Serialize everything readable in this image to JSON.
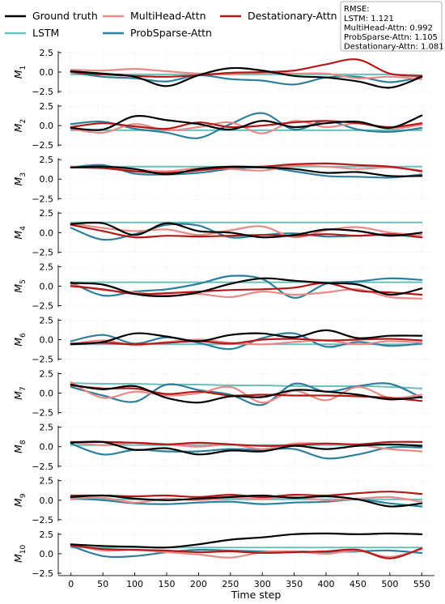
{
  "chart_data": {
    "type": "line",
    "xlabel": "Time step",
    "xlim": [
      -20,
      570
    ],
    "x_ticks": [
      "0",
      "50",
      "100",
      "150",
      "200",
      "250",
      "300",
      "350",
      "400",
      "450",
      "500",
      "550"
    ],
    "y_ticks": [
      "2.5",
      "0.0",
      "−2.5"
    ],
    "ylim": [
      -2.7,
      2.7
    ],
    "grid": true,
    "legend": {
      "placement": "top",
      "entries": [
        "Ground truth",
        "LSTM",
        "MultiHead-Attn",
        "ProbSparse-Attn",
        "Destationary-Attn"
      ]
    },
    "rmse_box": {
      "title": "RMSE:",
      "lines": [
        "LSTM: 1.121",
        "MultiHead-Attn: 0.992",
        "ProbSparse-Attn: 1.105",
        "Destationary-Attn: 1.081"
      ]
    },
    "series_styles": [
      {
        "name": "Ground truth",
        "color": "#000000"
      },
      {
        "name": "LSTM",
        "color": "#6bbfba"
      },
      {
        "name": "MultiHead-Attn",
        "color": "#e88a87"
      },
      {
        "name": "ProbSparse-Attn",
        "color": "#2f7f9b"
      },
      {
        "name": "Destationary-Attn",
        "color": "#b21a1a"
      }
    ],
    "x_knots": [
      0,
      50,
      100,
      150,
      200,
      250,
      300,
      350,
      400,
      450,
      500,
      550
    ],
    "panels": [
      {
        "label": "M",
        "sub": "1",
        "series": [
          {
            "name": "Ground truth",
            "values": [
              0.1,
              -0.2,
              -0.6,
              -1.8,
              -0.4,
              0.5,
              0.2,
              -0.5,
              -0.7,
              -1.2,
              -2.0,
              -0.6
            ]
          },
          {
            "name": "LSTM",
            "values": [
              -0.3,
              -0.3,
              -0.3,
              -0.3,
              -0.3,
              -0.3,
              -0.3,
              -0.3,
              -0.3,
              -0.3,
              -0.3,
              -0.4
            ]
          },
          {
            "name": "MultiHead-Attn",
            "values": [
              0.3,
              0.2,
              0.4,
              0.1,
              -0.2,
              -0.3,
              -0.1,
              -0.2,
              -0.2,
              -0.8,
              -0.6,
              -0.9
            ]
          },
          {
            "name": "ProbSparse-Attn",
            "values": [
              0.0,
              -0.6,
              -0.8,
              -1.2,
              -0.4,
              -0.9,
              -1.1,
              -1.6,
              -0.7,
              -0.6,
              -1.3,
              -0.6
            ]
          },
          {
            "name": "Destationary-Attn",
            "values": [
              0.0,
              -0.3,
              -0.5,
              -0.6,
              -0.4,
              -0.1,
              0.0,
              0.2,
              1.0,
              1.6,
              -0.2,
              -0.5
            ]
          }
        ]
      },
      {
        "label": "M",
        "sub": "2",
        "series": [
          {
            "name": "Ground truth",
            "values": [
              -0.3,
              -0.5,
              1.2,
              0.7,
              0.2,
              -0.5,
              0.6,
              -0.2,
              0.3,
              0.5,
              -0.3,
              1.3
            ]
          },
          {
            "name": "LSTM",
            "values": [
              -0.6,
              -0.6,
              -0.6,
              -0.6,
              -0.6,
              -0.6,
              -0.6,
              -0.6,
              -0.6,
              -0.6,
              -0.6,
              -0.6
            ]
          },
          {
            "name": "MultiHead-Attn",
            "values": [
              -0.4,
              -0.9,
              0.2,
              -0.6,
              -0.2,
              0.4,
              -1.0,
              0.6,
              -0.2,
              0.3,
              -0.4,
              0.1
            ]
          },
          {
            "name": "ProbSparse-Attn",
            "values": [
              0.2,
              0.5,
              -0.4,
              -0.9,
              -1.6,
              0.2,
              1.6,
              -0.5,
              0.6,
              -0.5,
              -0.8,
              -0.3
            ]
          },
          {
            "name": "Destationary-Attn",
            "values": [
              -0.2,
              0.3,
              -0.1,
              -0.4,
              0.4,
              -0.2,
              0.0,
              0.4,
              0.6,
              0.3,
              -0.2,
              0.3
            ]
          }
        ]
      },
      {
        "label": "M",
        "sub": "3",
        "series": [
          {
            "name": "Ground truth",
            "values": [
              1.5,
              1.6,
              1.3,
              0.6,
              1.3,
              1.6,
              1.5,
              1.3,
              0.8,
              0.9,
              0.4,
              0.4
            ]
          },
          {
            "name": "LSTM",
            "values": [
              1.6,
              1.6,
              1.6,
              1.6,
              1.6,
              1.6,
              1.6,
              1.6,
              1.6,
              1.6,
              1.6,
              1.6
            ]
          },
          {
            "name": "MultiHead-Attn",
            "values": [
              1.6,
              1.5,
              1.2,
              1.0,
              1.4,
              1.3,
              1.1,
              1.7,
              1.6,
              1.3,
              1.5,
              1.1
            ]
          },
          {
            "name": "ProbSparse-Attn",
            "values": [
              1.5,
              1.8,
              0.7,
              0.6,
              0.8,
              1.3,
              1.5,
              1.0,
              0.4,
              0.3,
              0.2,
              0.6
            ]
          },
          {
            "name": "Destationary-Attn",
            "values": [
              1.5,
              1.4,
              1.0,
              0.8,
              1.1,
              1.5,
              1.6,
              1.9,
              2.0,
              1.8,
              1.6,
              1.0
            ]
          }
        ]
      },
      {
        "label": "M",
        "sub": "4",
        "series": [
          {
            "name": "Ground truth",
            "values": [
              1.1,
              1.2,
              -0.3,
              1.2,
              0.2,
              0.0,
              -0.6,
              -0.3,
              0.4,
              0.2,
              -0.4,
              0.0
            ]
          },
          {
            "name": "LSTM",
            "values": [
              1.3,
              1.3,
              1.3,
              1.3,
              1.3,
              1.3,
              1.3,
              1.3,
              1.3,
              1.3,
              1.3,
              1.3
            ]
          },
          {
            "name": "MultiHead-Attn",
            "values": [
              1.2,
              0.6,
              0.2,
              0.4,
              -0.3,
              0.3,
              0.8,
              -0.6,
              0.3,
              0.7,
              0.0,
              -0.3
            ]
          },
          {
            "name": "ProbSparse-Attn",
            "values": [
              0.6,
              -0.9,
              -0.2,
              1.0,
              0.9,
              -0.6,
              -0.3,
              -0.1,
              -0.5,
              -0.4,
              -0.3,
              -0.6
            ]
          },
          {
            "name": "Destationary-Attn",
            "values": [
              1.0,
              0.2,
              -0.6,
              -0.4,
              -0.5,
              -0.4,
              -0.3,
              -0.4,
              -0.2,
              -0.4,
              -0.2,
              -0.6
            ]
          }
        ]
      },
      {
        "label": "M",
        "sub": "5",
        "series": [
          {
            "name": "Ground truth",
            "values": [
              0.4,
              0.2,
              -1.0,
              -1.3,
              -0.8,
              0.3,
              1.0,
              0.7,
              0.4,
              0.2,
              -1.1,
              -0.3
            ]
          },
          {
            "name": "LSTM",
            "values": [
              0.5,
              0.5,
              0.5,
              0.5,
              0.5,
              0.5,
              0.5,
              0.5,
              0.5,
              0.5,
              0.5,
              0.5
            ]
          },
          {
            "name": "MultiHead-Attn",
            "values": [
              0.2,
              -0.5,
              -0.8,
              -1.2,
              -1.0,
              -1.4,
              -0.7,
              -1.1,
              -0.8,
              -0.4,
              -1.4,
              -1.6
            ]
          },
          {
            "name": "ProbSparse-Attn",
            "values": [
              0.5,
              -1.2,
              -0.7,
              -0.4,
              0.3,
              1.3,
              0.9,
              -1.5,
              0.3,
              0.6,
              1.0,
              0.8
            ]
          },
          {
            "name": "Destationary-Attn",
            "values": [
              0.0,
              -0.4,
              -1.0,
              -0.9,
              -0.7,
              -0.5,
              -0.4,
              -0.2,
              0.4,
              -0.6,
              -0.8,
              -1.1
            ]
          }
        ]
      },
      {
        "label": "M",
        "sub": "6",
        "series": [
          {
            "name": "Ground truth",
            "values": [
              -0.6,
              -0.3,
              0.8,
              0.4,
              -0.2,
              0.6,
              0.8,
              0.3,
              1.2,
              0.2,
              0.5,
              0.5
            ]
          },
          {
            "name": "LSTM",
            "values": [
              -0.6,
              -0.6,
              -0.6,
              -0.6,
              -0.6,
              -0.6,
              -0.6,
              -0.6,
              -0.6,
              -0.6,
              -0.6,
              -0.6
            ]
          },
          {
            "name": "MultiHead-Attn",
            "values": [
              -0.6,
              -0.1,
              -0.7,
              -0.3,
              0.0,
              -0.4,
              -0.6,
              -0.3,
              -0.1,
              -0.6,
              -0.2,
              -0.4
            ]
          },
          {
            "name": "ProbSparse-Attn",
            "values": [
              -0.2,
              0.6,
              -0.5,
              0.3,
              -0.4,
              -1.2,
              0.2,
              0.8,
              -0.9,
              -0.3,
              -0.8,
              -0.5
            ]
          },
          {
            "name": "Destationary-Attn",
            "values": [
              -0.5,
              -0.4,
              -0.6,
              -0.4,
              -0.2,
              -0.5,
              0.0,
              0.1,
              -0.1,
              0.0,
              0.1,
              -0.1
            ]
          }
        ]
      },
      {
        "label": "M",
        "sub": "7",
        "series": [
          {
            "name": "Ground truth",
            "values": [
              1.1,
              0.5,
              0.9,
              -0.6,
              -1.2,
              -0.4,
              -0.5,
              0.4,
              0.2,
              -0.2,
              -0.8,
              -0.5
            ]
          },
          {
            "name": "LSTM",
            "values": [
              1.3,
              1.2,
              1.2,
              1.1,
              1.1,
              1.0,
              1.0,
              0.9,
              0.9,
              0.9,
              0.8,
              0.6
            ]
          },
          {
            "name": "MultiHead-Attn",
            "values": [
              1.4,
              -0.6,
              0.2,
              -0.3,
              0.0,
              0.8,
              -1.2,
              0.3,
              -0.9,
              0.8,
              -0.6,
              -0.2
            ]
          },
          {
            "name": "ProbSparse-Attn",
            "values": [
              0.8,
              -0.3,
              -1.1,
              1.1,
              0.4,
              -0.2,
              -1.5,
              1.2,
              0.2,
              0.9,
              1.2,
              -0.6
            ]
          },
          {
            "name": "Destationary-Attn",
            "values": [
              1.0,
              0.6,
              0.6,
              -0.1,
              0.2,
              -0.3,
              -0.2,
              -0.3,
              -0.3,
              -0.4,
              -0.6,
              -1.0
            ]
          }
        ]
      },
      {
        "label": "M",
        "sub": "8",
        "series": [
          {
            "name": "Ground truth",
            "values": [
              0.5,
              0.6,
              -0.4,
              -0.2,
              -1.0,
              -0.5,
              -0.6,
              0.1,
              -0.3,
              0.1,
              0.3,
              0.1
            ]
          },
          {
            "name": "LSTM",
            "values": [
              0.2,
              0.2,
              0.2,
              0.2,
              0.2,
              0.2,
              0.2,
              0.2,
              0.2,
              0.2,
              0.2,
              0.2
            ]
          },
          {
            "name": "MultiHead-Attn",
            "values": [
              0.6,
              0.2,
              0.5,
              0.3,
              0.0,
              0.3,
              -0.3,
              0.4,
              0.4,
              0.2,
              -0.3,
              -0.6
            ]
          },
          {
            "name": "ProbSparse-Attn",
            "values": [
              0.4,
              -1.0,
              -0.4,
              -0.6,
              -0.6,
              -0.3,
              -0.4,
              -0.3,
              -1.5,
              -1.0,
              -0.1,
              -0.1
            ]
          },
          {
            "name": "Destationary-Attn",
            "values": [
              0.6,
              0.6,
              0.5,
              0.3,
              0.5,
              0.3,
              0.1,
              0.2,
              0.4,
              0.3,
              0.6,
              0.6
            ]
          }
        ]
      },
      {
        "label": "M",
        "sub": "9",
        "series": [
          {
            "name": "Ground truth",
            "values": [
              0.4,
              0.6,
              0.2,
              0.0,
              0.2,
              0.4,
              0.6,
              0.3,
              0.5,
              0.1,
              -0.8,
              -0.4
            ]
          },
          {
            "name": "LSTM",
            "values": [
              0.1,
              0.1,
              0.1,
              0.1,
              0.1,
              0.1,
              0.1,
              0.1,
              0.1,
              0.1,
              0.1,
              0.1
            ]
          },
          {
            "name": "MultiHead-Attn",
            "values": [
              0.2,
              0.3,
              -0.3,
              0.2,
              0.0,
              0.3,
              0.2,
              0.4,
              0.0,
              0.2,
              0.4,
              -0.2
            ]
          },
          {
            "name": "ProbSparse-Attn",
            "values": [
              0.3,
              0.0,
              -0.4,
              -0.5,
              -0.3,
              -0.2,
              -0.5,
              -0.3,
              -0.2,
              0.1,
              -0.4,
              -0.8
            ]
          },
          {
            "name": "Destationary-Attn",
            "values": [
              0.6,
              0.6,
              0.5,
              0.6,
              0.4,
              0.7,
              0.4,
              0.7,
              0.6,
              0.9,
              1.1,
              0.8
            ]
          }
        ]
      },
      {
        "label": "M",
        "sub": "10",
        "series": [
          {
            "name": "Ground truth",
            "values": [
              1.2,
              1.0,
              0.9,
              0.8,
              1.2,
              1.8,
              2.1,
              2.5,
              2.6,
              2.5,
              2.6,
              2.5
            ]
          },
          {
            "name": "LSTM",
            "values": [
              0.8,
              0.8,
              0.8,
              0.8,
              0.8,
              0.8,
              0.8,
              0.8,
              0.8,
              0.8,
              0.8,
              0.8
            ]
          },
          {
            "name": "MultiHead-Attn",
            "values": [
              1.2,
              0.4,
              0.5,
              0.2,
              -0.1,
              -0.5,
              0.2,
              0.3,
              0.0,
              0.4,
              -0.4,
              0.6
            ]
          },
          {
            "name": "ProbSparse-Attn",
            "values": [
              1.0,
              -0.3,
              -0.3,
              0.2,
              0.5,
              0.4,
              0.3,
              0.3,
              0.2,
              0.3,
              0.4,
              0.1
            ]
          },
          {
            "name": "Destationary-Attn",
            "values": [
              1.1,
              0.6,
              0.5,
              0.4,
              0.2,
              0.3,
              0.1,
              0.2,
              0.3,
              0.5,
              -0.6,
              0.7
            ]
          }
        ]
      }
    ]
  }
}
